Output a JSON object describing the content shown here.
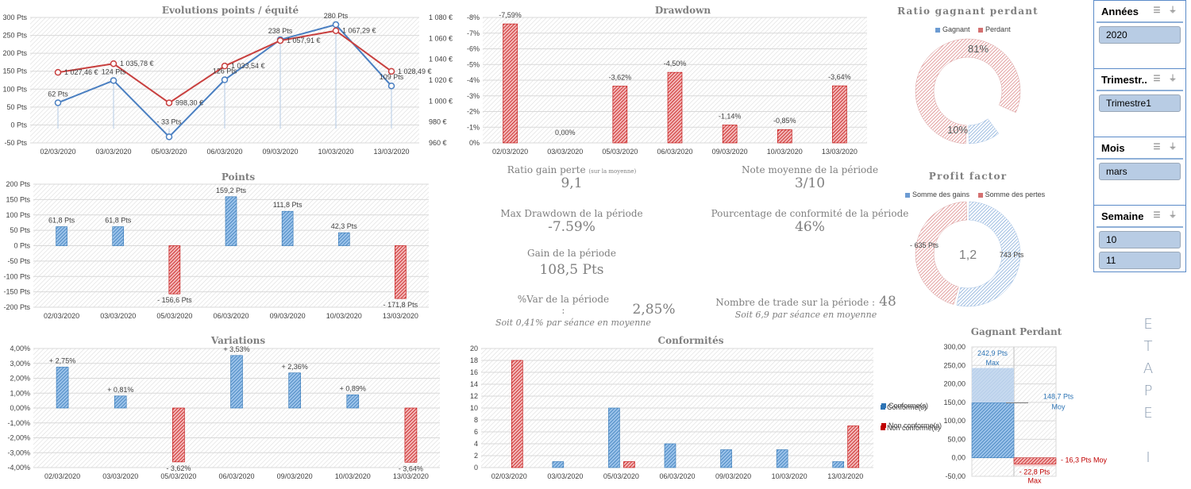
{
  "colors": {
    "blue": "#4a86c8",
    "red": "#c8403f",
    "blue_dark": "#2e74b5",
    "red_dark": "#c00000",
    "grid": "#d9d9d9",
    "axis_text": "#404040"
  },
  "chart_data": [
    {
      "id": "evolution",
      "type": "line",
      "title": "Evolutions points / équité",
      "categories": [
        "02/03/2020",
        "03/03/2020",
        "05/03/2020",
        "06/03/2020",
        "09/03/2020",
        "10/03/2020",
        "13/03/2020"
      ],
      "series": [
        {
          "name": "Points",
          "axis": "left",
          "values": [
            62,
            124,
            -33,
            126,
            238,
            280,
            109
          ],
          "labels": [
            "62 Pts",
            "124 Pts",
            "- 33 Pts",
            "126 Pts",
            "238 Pts",
            "280 Pts",
            "109 Pts"
          ]
        },
        {
          "name": "Equité",
          "axis": "right",
          "values": [
            1027.46,
            1035.78,
            998.3,
            1033.54,
            1057.91,
            1067.29,
            1028.49
          ],
          "labels": [
            "1 027,46 €",
            "1 035,78 €",
            "998,30 €",
            "1 033,54 €",
            "1 057,91 €",
            "1 067,29 €",
            "1 028,49 €"
          ]
        }
      ],
      "ylim": [
        -50,
        300
      ],
      "yticks": [
        -50,
        0,
        50,
        100,
        150,
        200,
        250,
        300
      ],
      "ytick_labels": [
        "-50 Pts",
        "0 Pts",
        "50 Pts",
        "100 Pts",
        "150 Pts",
        "200 Pts",
        "250 Pts",
        "300 Pts"
      ],
      "y2lim": [
        960,
        1080
      ],
      "y2ticks": [
        960,
        980,
        1000,
        1020,
        1040,
        1060,
        1080
      ],
      "y2tick_labels": [
        "960 €",
        "980 €",
        "1 000 €",
        "1 020 €",
        "1 040 €",
        "1 060 €",
        "1 080 €"
      ],
      "grid": true
    },
    {
      "id": "drawdown",
      "type": "bar",
      "title": "Drawdown",
      "categories": [
        "02/03/2020",
        "03/03/2020",
        "05/03/2020",
        "06/03/2020",
        "09/03/2020",
        "10/03/2020",
        "13/03/2020"
      ],
      "values": [
        -7.59,
        0,
        -3.62,
        -4.5,
        -1.14,
        -0.85,
        -3.64
      ],
      "labels": [
        "-7,59%",
        "0,00%",
        "-3,62%",
        "-4,50%",
        "-1,14%",
        "-0,85%",
        "-3,64%"
      ],
      "ylim": [
        0,
        -8
      ],
      "yticks": [
        0,
        -1,
        -2,
        -3,
        -4,
        -5,
        -6,
        -7,
        -8
      ],
      "ytick_labels": [
        "0%",
        "-1%",
        "-2%",
        "-3%",
        "-4%",
        "-5%",
        "-6%",
        "-7%",
        "-8%"
      ],
      "grid": true
    },
    {
      "id": "points",
      "type": "bar",
      "title": "Points",
      "categories": [
        "02/03/2020",
        "03/03/2020",
        "05/03/2020",
        "06/03/2020",
        "09/03/2020",
        "10/03/2020",
        "13/03/2020"
      ],
      "values": [
        61.8,
        61.8,
        -156.6,
        159.2,
        111.8,
        42.3,
        -171.8
      ],
      "labels": [
        "61,8 Pts",
        "61,8 Pts",
        "- 156,6 Pts",
        "159,2 Pts",
        "111,8 Pts",
        "42,3 Pts",
        "- 171,8 Pts"
      ],
      "ylim": [
        -200,
        200
      ],
      "yticks": [
        -200,
        -150,
        -100,
        -50,
        0,
        50,
        100,
        150,
        200
      ],
      "ytick_labels": [
        "-200 Pts",
        "-150 Pts",
        "-100 Pts",
        "-50 Pts",
        "0 Pts",
        "50 Pts",
        "100 Pts",
        "150 Pts",
        "200 Pts"
      ],
      "grid": true
    },
    {
      "id": "variations",
      "type": "bar",
      "title": "Variations",
      "categories": [
        "02/03/2020",
        "03/03/2020",
        "05/03/2020",
        "06/03/2020",
        "09/03/2020",
        "10/03/2020",
        "13/03/2020"
      ],
      "values": [
        2.75,
        0.81,
        -3.62,
        3.53,
        2.36,
        0.89,
        -3.64
      ],
      "labels": [
        "+ 2,75%",
        "+ 0,81%",
        "- 3,62%",
        "+ 3,53%",
        "+ 2,36%",
        "+ 0,89%",
        "- 3,64%"
      ],
      "ylim": [
        -4,
        4
      ],
      "yticks": [
        -4,
        -3,
        -2,
        -1,
        0,
        1,
        2,
        3,
        4
      ],
      "ytick_labels": [
        "-4,00%",
        "-3,00%",
        "-2,00%",
        "-1,00%",
        "0,00%",
        "1,00%",
        "2,00%",
        "3,00%",
        "4,00%"
      ],
      "grid": true
    },
    {
      "id": "conformites",
      "type": "bar",
      "title": "Conformités",
      "categories": [
        "02/03/2020",
        "03/03/2020",
        "05/03/2020",
        "06/03/2020",
        "09/03/2020",
        "10/03/2020",
        "13/03/2020"
      ],
      "series": [
        {
          "name": "Conforme(s)",
          "values": [
            0,
            1,
            10,
            4,
            3,
            3,
            1
          ]
        },
        {
          "name": "Non conforme(s)",
          "values": [
            18,
            0,
            1,
            0,
            0,
            0,
            7
          ]
        }
      ],
      "ylim": [
        0,
        20
      ],
      "yticks": [
        0,
        2,
        4,
        6,
        8,
        10,
        12,
        14,
        16,
        18,
        20
      ],
      "ytick_labels": [
        "0",
        "2",
        "4",
        "6",
        "8",
        "10",
        "12",
        "14",
        "16",
        "18",
        "20"
      ],
      "legend": "right",
      "grid": true
    },
    {
      "id": "ratio",
      "type": "pie",
      "title": "Ratio gagnant perdant",
      "series": [
        {
          "name": "Gagnant",
          "value": 10,
          "label": "10%"
        },
        {
          "name": "Perdant",
          "value": 81,
          "label": "81%"
        }
      ],
      "legend": "top"
    },
    {
      "id": "profit",
      "type": "pie",
      "title": "Profit factor",
      "center_label": "1,2",
      "series": [
        {
          "name": "Somme des gains",
          "value": 743,
          "label": "743 Pts"
        },
        {
          "name": "Somme des pertes",
          "value": 635,
          "label": "- 635 Pts"
        }
      ],
      "legend": "top"
    },
    {
      "id": "gagnant_perdant",
      "type": "bar",
      "title": "Gagnant Perdant",
      "series": [
        {
          "name": "Gagnant",
          "max": 242.9,
          "avg": 148.7,
          "max_label": "242,9 Pts",
          "max_sub": "Max",
          "avg_label": "148,7 Pts",
          "avg_sub": "Moy"
        },
        {
          "name": "Perdant",
          "max": -22.8,
          "avg": -16.3,
          "max_label": "- 22,8 Pts",
          "max_sub": "Max",
          "avg_label": "- 16,3 Pts Moy"
        }
      ],
      "legend_entries": [
        "Conforme(s)",
        "Non conforme(s)"
      ],
      "ylim": [
        -50,
        300
      ],
      "yticks": [
        -50,
        0,
        50,
        100,
        150,
        200,
        250,
        300
      ],
      "ytick_labels": [
        "-50,00",
        "0,00",
        "50,00",
        "100,00",
        "150,00",
        "200,00",
        "250,00",
        "300,00"
      ],
      "legend": "left",
      "grid": true
    }
  ],
  "kpis": {
    "ratio_label": "Ratio gain perte",
    "ratio_note": "(sur la moyenne)",
    "ratio_value": "9,1",
    "note_label": "Note moyenne de la période",
    "note_value": "3/10",
    "maxdd_label": "Max Drawdown de la période",
    "maxdd_value": "-7.59%",
    "conf_label": "Pourcentage de conformité de la période",
    "conf_value": "46%",
    "gain_label": "Gain de la période",
    "gain_value": "108,5 Pts",
    "var_label": "%Var de la période :",
    "var_value": "2,85%",
    "var_sub": "Soit 0,41% par séance en moyenne",
    "trades_label": "Nombre de trade sur la période :",
    "trades_value": "48",
    "trades_sub": "Soit 6,9 par séance en moyenne"
  },
  "slicers": [
    {
      "title": "Années",
      "items": [
        "2020"
      ]
    },
    {
      "title": "Trimestr...",
      "items": [
        "Trimestre1"
      ]
    },
    {
      "title": "Mois",
      "items": [
        "mars"
      ]
    },
    {
      "title": "Semaine",
      "items": [
        "10",
        "11"
      ]
    }
  ],
  "etape_letters": [
    "E",
    "T",
    "A",
    "P",
    "E",
    "",
    "I"
  ]
}
